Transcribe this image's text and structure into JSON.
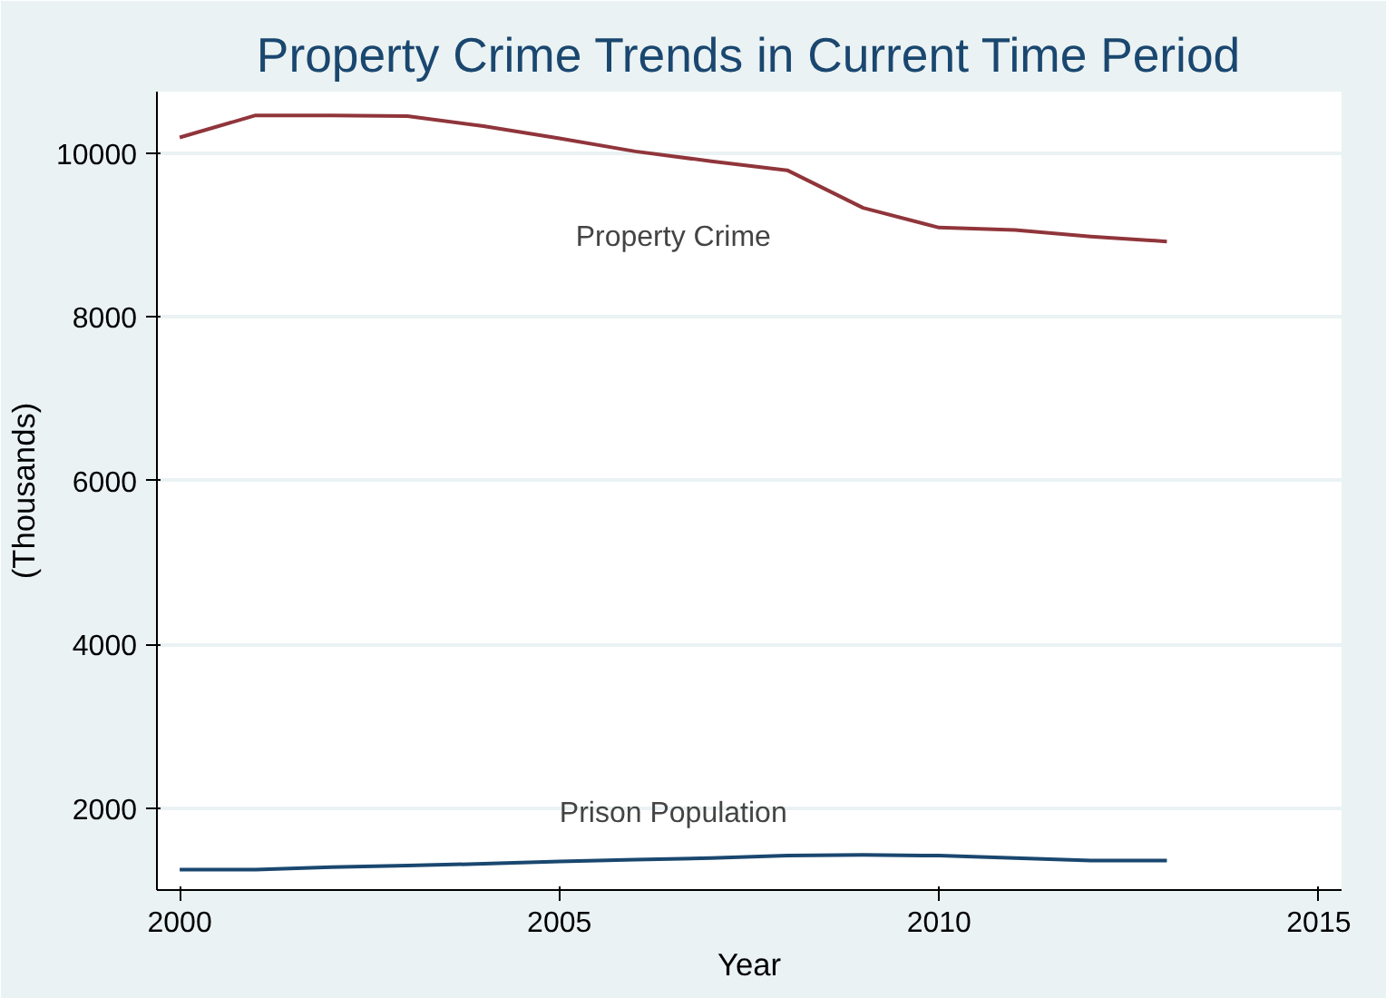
{
  "chart_data": {
    "type": "line",
    "title": "Property Crime Trends in Current Time Period",
    "xlabel": "Year",
    "ylabel": "(Thousands)",
    "x": [
      2000,
      2001,
      2002,
      2003,
      2004,
      2005,
      2006,
      2007,
      2008,
      2009,
      2010,
      2011,
      2012,
      2013
    ],
    "series": [
      {
        "name": "Property Crime",
        "color": "#90353b",
        "values": [
          10190,
          10460,
          10460,
          10450,
          10330,
          10180,
          10020,
          9900,
          9790,
          9330,
          9090,
          9060,
          8980,
          8920
        ]
      },
      {
        "name": "Prison Population",
        "color": "#1a476f",
        "values": [
          1250,
          1250,
          1280,
          1300,
          1320,
          1350,
          1370,
          1390,
          1420,
          1430,
          1420,
          1390,
          1360,
          1360
        ]
      }
    ],
    "xlim": [
      1999.7,
      2015.3
    ],
    "ylim": [
      1000,
      10750
    ],
    "xticks": [
      2000,
      2005,
      2010,
      2015
    ],
    "yticks": [
      2000,
      4000,
      6000,
      8000,
      10000
    ],
    "grid": "y"
  }
}
